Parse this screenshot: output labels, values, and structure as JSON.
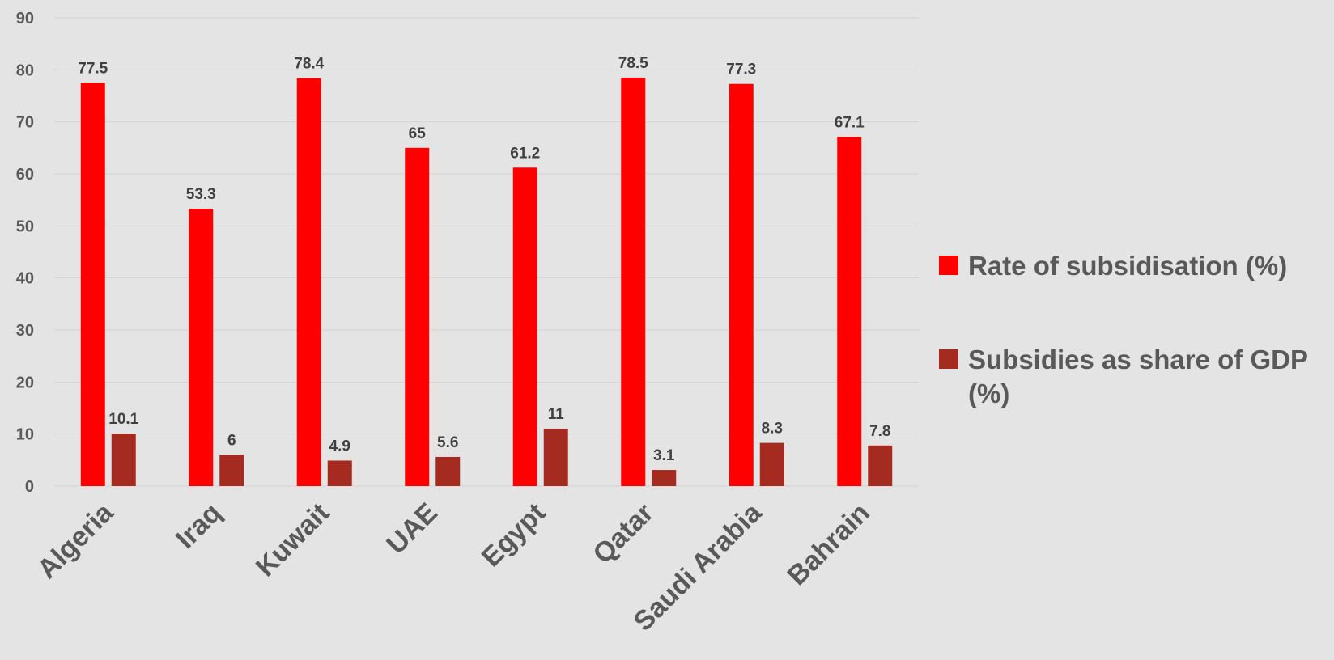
{
  "chart_data": {
    "type": "bar",
    "title": "",
    "xlabel": "",
    "ylabel": "",
    "categories": [
      "Algeria",
      "Iraq",
      "Kuwait",
      "UAE",
      "Egypt",
      "Qatar",
      "Saudi Arabia",
      "Bahrain"
    ],
    "series": [
      {
        "name": "Rate of subsidisation (%)",
        "color": "#ff0000",
        "values": [
          77.5,
          53.3,
          78.4,
          65,
          61.2,
          78.5,
          77.3,
          67.1
        ],
        "value_labels": [
          "77.5",
          "53.3",
          "78.4",
          "65",
          "61.2",
          "78.5",
          "77.3",
          "67.1"
        ]
      },
      {
        "name": "Subsidies as share of GDP (%)",
        "color": "#a52a1f",
        "values": [
          10.1,
          6,
          4.9,
          5.6,
          11,
          3.1,
          8.3,
          7.8
        ],
        "value_labels": [
          "10.1",
          "6",
          "4.9",
          "5.6",
          "11",
          "3.1",
          "8.3",
          "7.8"
        ]
      }
    ],
    "ylim": [
      0,
      90
    ],
    "yticks": [
      "0",
      "10",
      "20",
      "30",
      "40",
      "50",
      "60",
      "70",
      "80",
      "90"
    ],
    "grid": true,
    "legend_position": "right",
    "legend_lines": [
      [
        "Rate of subsidisation (%)"
      ],
      [
        "Subsidies as share of GDP",
        "(%)"
      ]
    ]
  }
}
